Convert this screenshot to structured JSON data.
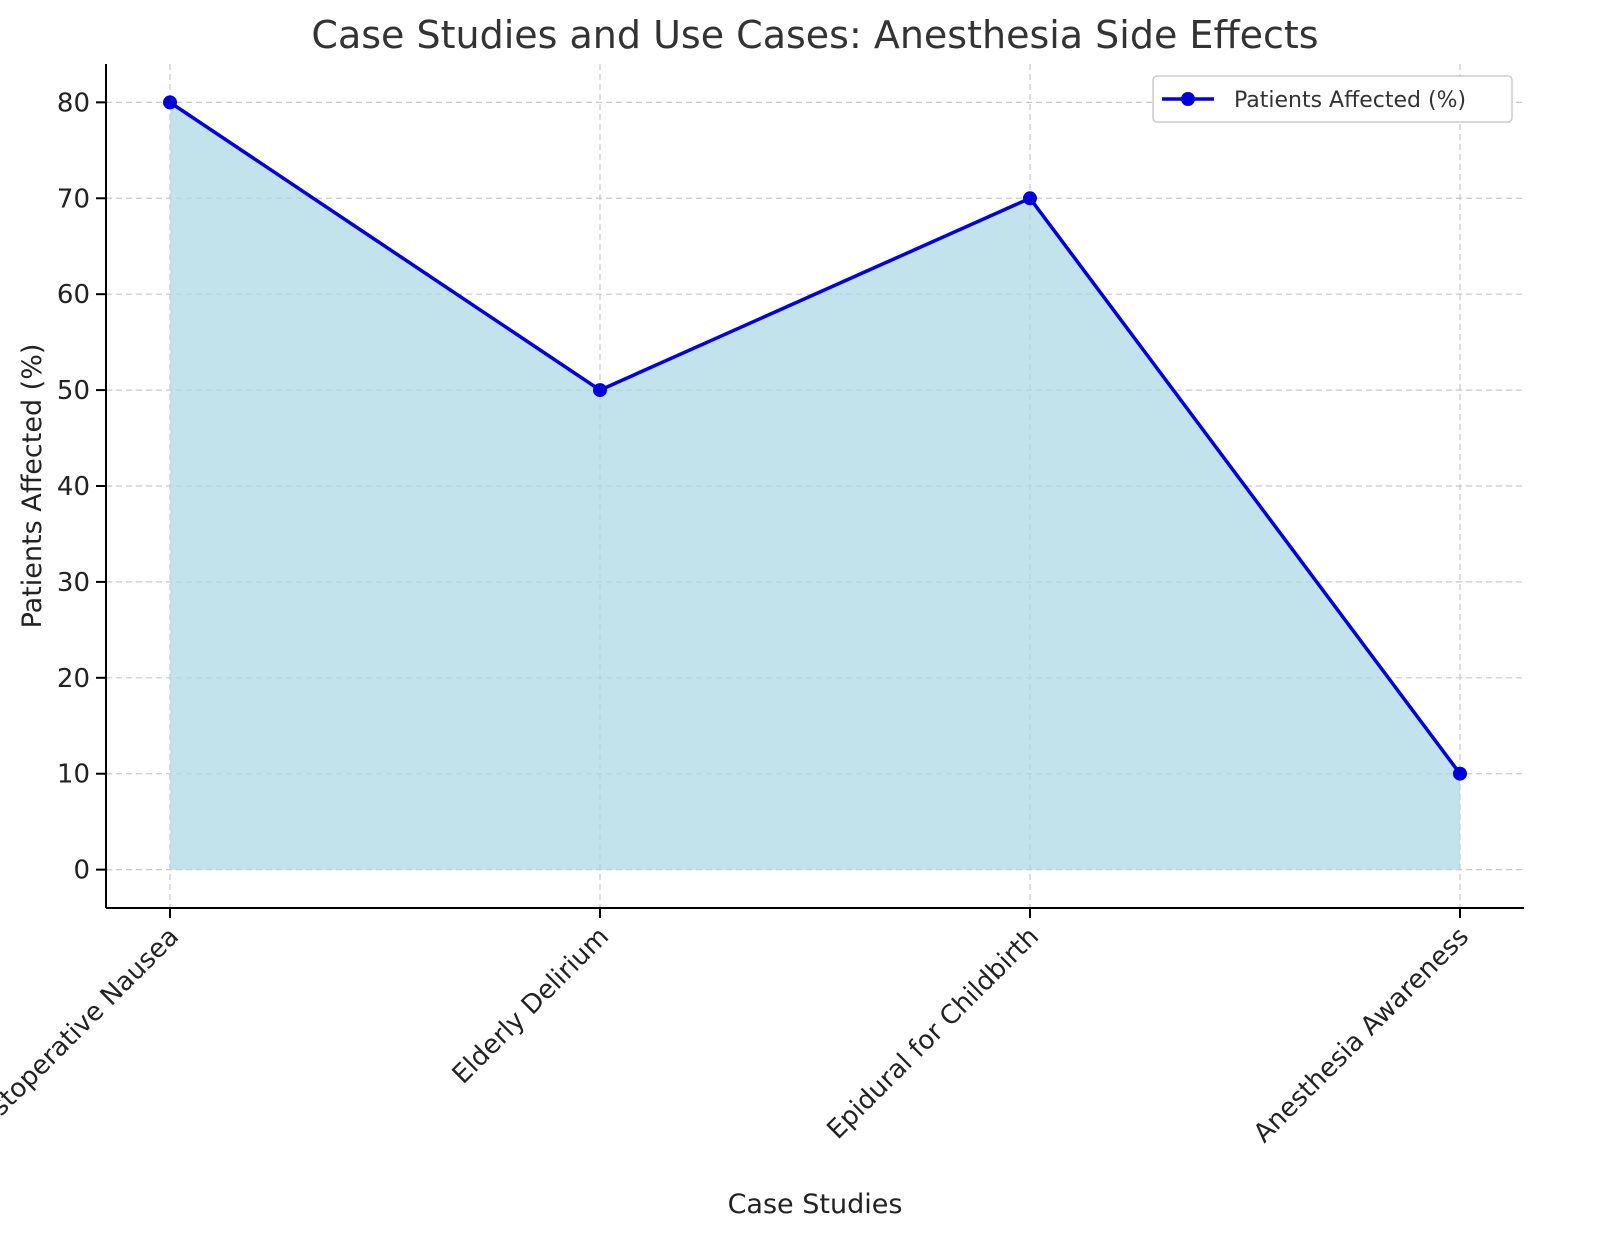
{
  "chart_data": {
    "type": "area",
    "title": "Case Studies and Use Cases: Anesthesia Side Effects",
    "xlabel": "Case Studies",
    "ylabel": "Patients Affected (%)",
    "categories": [
      "Postoperative Nausea",
      "Elderly Delirium",
      "Epidural for Childbirth",
      "Anesthesia Awareness"
    ],
    "series": [
      {
        "name": "Patients Affected (%)",
        "values": [
          80,
          50,
          70,
          10
        ]
      }
    ],
    "yticks": [
      "0",
      "10",
      "20",
      "30",
      "40",
      "50",
      "60",
      "70",
      "80"
    ],
    "ylim": [
      -4,
      84
    ],
    "grid": true,
    "legend_position": "top-right",
    "colors": {
      "line": "#0000dd",
      "fill": "#add8e6",
      "grid": "#c8c8c8",
      "axis": "#000000"
    }
  }
}
